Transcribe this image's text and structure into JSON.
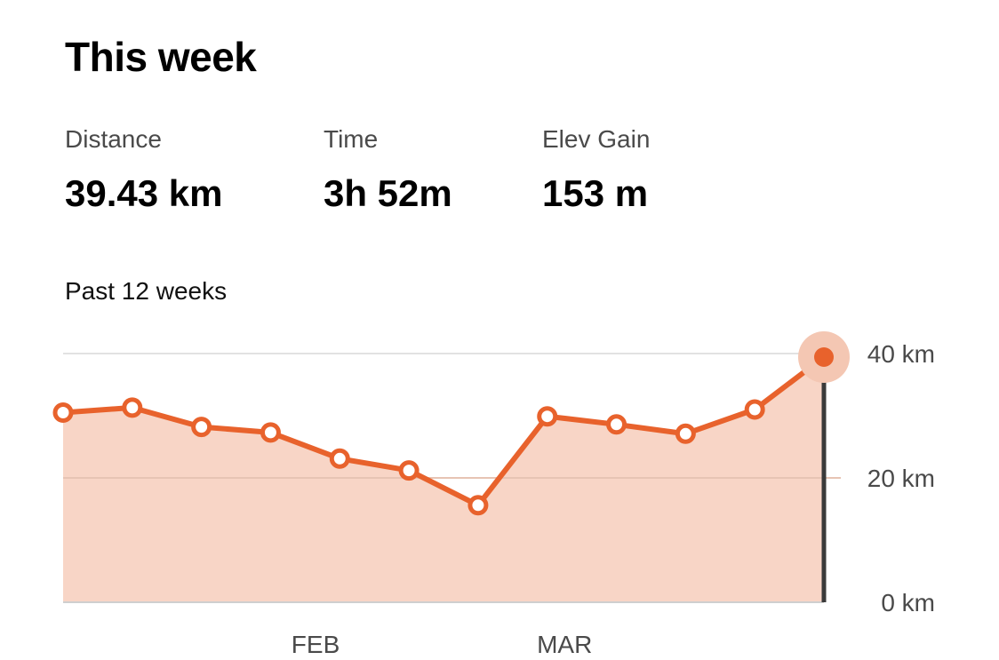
{
  "header": {
    "title": "This week"
  },
  "stats": [
    {
      "label": "Distance",
      "value": "39.43 km"
    },
    {
      "label": "Time",
      "value": "3h 52m"
    },
    {
      "label": "Elev Gain",
      "value": "153 m"
    }
  ],
  "chart_section": {
    "subtitle": "Past 12 weeks"
  },
  "colors": {
    "accent": "#e8622c",
    "fill": "#f8d5c6",
    "grid": "#e2e2e2",
    "highlight_halo": "#f4c7b3",
    "cursor": "#3a3a3a"
  },
  "chart_data": {
    "type": "area",
    "x": [
      0,
      1,
      2,
      3,
      4,
      5,
      6,
      7,
      8,
      9,
      10,
      11
    ],
    "series": [
      {
        "values": [
          30.5,
          31.3,
          28.2,
          27.3,
          23.1,
          21.2,
          15.6,
          29.9,
          28.6,
          27.1,
          31.0,
          39.43
        ]
      }
    ],
    "x_tick_labels": [
      {
        "x": 3.65,
        "label": "FEB"
      },
      {
        "x": 7.25,
        "label": "MAR"
      }
    ],
    "y_ticks": [
      {
        "value": 40,
        "label": "40 km"
      },
      {
        "value": 20,
        "label": "20 km"
      },
      {
        "value": 0,
        "label": "0 km"
      }
    ],
    "ylim": [
      0,
      40
    ],
    "highlighted_index": 11,
    "grid": true,
    "y_axis_position": "right"
  }
}
